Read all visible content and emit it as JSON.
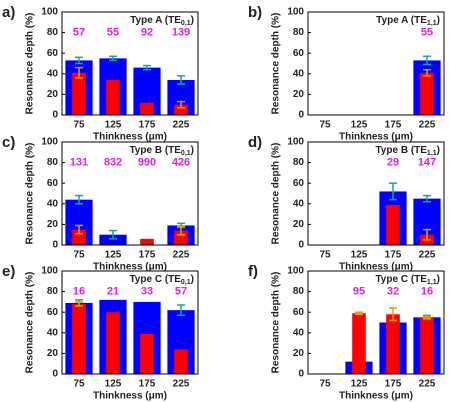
{
  "chart_data": [
    {
      "type": "bar",
      "panel": "a)",
      "title": {
        "text": "Type A (TE",
        "sub": "0,1",
        "end": ")"
      },
      "ylabel": "Resonance depth (%)",
      "xlabel": "Thinkness (μm)",
      "categories": [
        75,
        125,
        175,
        225
      ],
      "ylim": [
        0,
        100
      ],
      "yticks": [
        0,
        20,
        40,
        60,
        80,
        100
      ],
      "series": [
        {
          "color": "#0000ff",
          "error_color": "#1aa68a",
          "values": [
            53,
            55,
            46,
            34
          ],
          "errors": [
            3,
            2,
            2,
            4
          ]
        },
        {
          "color": "#ff0000",
          "error_color": "#e0a000",
          "values": [
            41,
            34,
            12,
            10
          ],
          "errors": [
            5,
            null,
            null,
            3
          ]
        }
      ],
      "top_labels": [
        57,
        55,
        92,
        139
      ],
      "top_label_color": "#e020e0"
    },
    {
      "type": "bar",
      "panel": "b)",
      "title": {
        "text": "Type A (TE",
        "sub": "1,1",
        "end": ")"
      },
      "ylabel": "Resonance depth (%)",
      "xlabel": "Thinkness (μm)",
      "categories": [
        75,
        125,
        175,
        225
      ],
      "ylim": [
        0,
        100
      ],
      "yticks": [
        0,
        20,
        40,
        60,
        80,
        100
      ],
      "series": [
        {
          "color": "#0000ff",
          "error_color": "#1aa68a",
          "values": [
            null,
            null,
            null,
            53
          ],
          "errors": [
            null,
            null,
            null,
            4
          ]
        },
        {
          "color": "#ff0000",
          "error_color": "#e0a000",
          "values": [
            null,
            null,
            null,
            41
          ],
          "errors": [
            null,
            null,
            null,
            3
          ]
        }
      ],
      "top_labels": [
        null,
        null,
        null,
        55
      ],
      "top_label_color": "#e020e0"
    },
    {
      "type": "bar",
      "panel": "c)",
      "title": {
        "text": "Type B (TE",
        "sub": "0,1",
        "end": ")"
      },
      "ylabel": "Resonance depth (%)",
      "xlabel": "Thinkness (μm)",
      "categories": [
        75,
        125,
        175,
        225
      ],
      "ylim": [
        0,
        100
      ],
      "yticks": [
        0,
        20,
        40,
        60,
        80,
        100
      ],
      "series": [
        {
          "color": "#0000ff",
          "error_color": "#1aa68a",
          "values": [
            44,
            10,
            null,
            19
          ],
          "errors": [
            4,
            4,
            null,
            2
          ]
        },
        {
          "color": "#ff0000",
          "error_color": "#e0a000",
          "values": [
            15,
            null,
            6,
            14
          ],
          "errors": [
            4,
            null,
            null,
            4
          ]
        }
      ],
      "top_labels": [
        131,
        832,
        990,
        426
      ],
      "top_label_color": "#e020e0"
    },
    {
      "type": "bar",
      "panel": "d)",
      "title": {
        "text": "Type B (TE",
        "sub": "1,1",
        "end": ")"
      },
      "ylabel": "Resonance depth (%)",
      "xlabel": "Thinkness (μm)",
      "categories": [
        75,
        125,
        175,
        225
      ],
      "ylim": [
        0,
        100
      ],
      "yticks": [
        0,
        20,
        40,
        60,
        80,
        100
      ],
      "series": [
        {
          "color": "#0000ff",
          "error_color": "#1aa68a",
          "values": [
            null,
            null,
            52,
            45
          ],
          "errors": [
            null,
            null,
            8,
            3
          ]
        },
        {
          "color": "#ff0000",
          "error_color": "#e0a000",
          "values": [
            null,
            null,
            39,
            10
          ],
          "errors": [
            null,
            null,
            null,
            5
          ]
        }
      ],
      "top_labels": [
        null,
        null,
        29,
        147
      ],
      "top_label_color": "#e020e0"
    },
    {
      "type": "bar",
      "panel": "e)",
      "title": {
        "text": "Type C (TE",
        "sub": "0,1",
        "end": ")"
      },
      "ylabel": "Resonance depth (%)",
      "xlabel": "Thinkness (μm)",
      "categories": [
        75,
        125,
        175,
        225
      ],
      "ylim": [
        0,
        100
      ],
      "yticks": [
        0,
        20,
        40,
        60,
        80,
        100
      ],
      "series": [
        {
          "color": "#0000ff",
          "error_color": "#1aa68a",
          "values": [
            69,
            72,
            70,
            62
          ],
          "errors": [
            3,
            null,
            null,
            5
          ]
        },
        {
          "color": "#ff0000",
          "error_color": "#e0a000",
          "values": [
            68,
            60,
            39,
            24
          ],
          "errors": [
            2,
            null,
            null,
            null
          ]
        }
      ],
      "top_labels": [
        16,
        21,
        33,
        57
      ],
      "top_label_color": "#e020e0"
    },
    {
      "type": "bar",
      "panel": "f)",
      "title": {
        "text": "Type C (TE",
        "sub": "1,1",
        "end": ")"
      },
      "ylabel": "Resonance depth (%)",
      "xlabel": "Thinkness (μm)",
      "categories": [
        75,
        125,
        175,
        225
      ],
      "ylim": [
        0,
        100
      ],
      "yticks": [
        0,
        20,
        40,
        60,
        80,
        100
      ],
      "series": [
        {
          "color": "#0000ff",
          "error_color": "#1aa68a",
          "values": [
            null,
            12,
            50,
            55
          ],
          "errors": [
            null,
            null,
            null,
            2
          ]
        },
        {
          "color": "#ff0000",
          "error_color": "#e0a000",
          "values": [
            null,
            59,
            58,
            55
          ],
          "errors": [
            null,
            1,
            6,
            1
          ]
        }
      ],
      "top_labels": [
        null,
        95,
        32,
        16
      ],
      "top_label_color": "#e020e0"
    }
  ]
}
